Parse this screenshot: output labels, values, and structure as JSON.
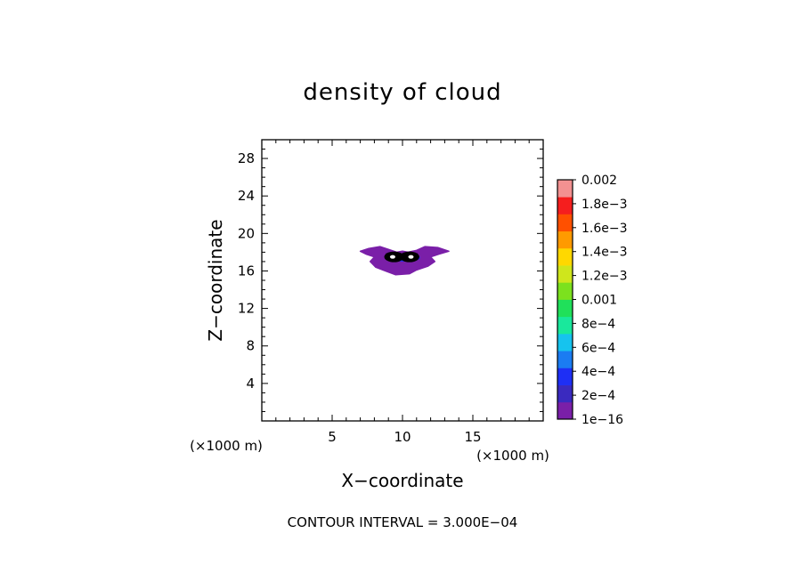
{
  "chart_data": {
    "type": "contour",
    "title": "density of cloud",
    "xlabel": "X−coordinate",
    "ylabel": "Z−coordinate",
    "x_unit": "(×1000 m)",
    "y_unit": "(×1000 m)",
    "xlim": [
      0,
      20
    ],
    "ylim": [
      0,
      30
    ],
    "x_ticks": [
      5,
      10,
      15
    ],
    "x_tick_labels": [
      "5",
      "10",
      "15"
    ],
    "y_ticks": [
      4,
      8,
      12,
      16,
      20,
      24,
      28
    ],
    "y_tick_labels": [
      "4",
      "8",
      "12",
      "16",
      "20",
      "24",
      "28"
    ],
    "contour_interval_text": "CONTOUR INTERVAL = 3.000E−04",
    "colorbar": {
      "labels": [
        "1e−16",
        "2e−4",
        "4e−4",
        "6e−4",
        "8e−4",
        "0.001",
        "1.2e−3",
        "1.4e−3",
        "1.6e−3",
        "1.8e−3",
        "0.002"
      ],
      "colors": [
        "#7a1fa8",
        "#3a2abf",
        "#1e2ff5",
        "#1b7cf2",
        "#16c3ee",
        "#19e89c",
        "#20e05a",
        "#7ce11e",
        "#cfe61c",
        "#ffd800",
        "#ff9a00",
        "#ff5000",
        "#f51e1e",
        "#f39191"
      ]
    },
    "cloud_region": {
      "x_range": [
        7.0,
        13.3
      ],
      "z_range": [
        15.5,
        18.5
      ],
      "core": {
        "x": [
          9.2,
          10.7
        ],
        "z": [
          17.3,
          17.7
        ]
      }
    }
  }
}
